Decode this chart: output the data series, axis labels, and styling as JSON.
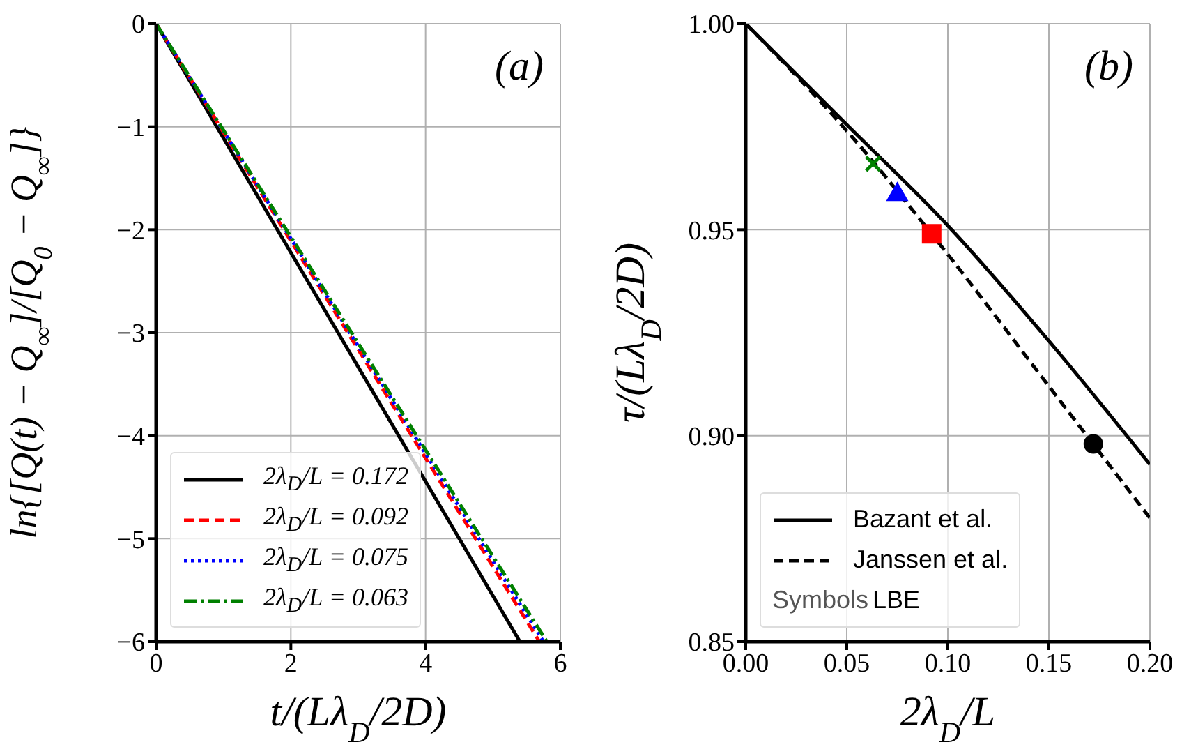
{
  "chart_data": [
    {
      "type": "line",
      "title": "(a)",
      "xlabel": "t/(Lλ$_{D}$/2D)",
      "ylabel": "ln{[Q(t) − Q$_{∞}$]/[Q$_{0}$ − Q$_{∞}$]}",
      "xlim": [
        0,
        6
      ],
      "xticks": [
        0,
        2,
        4,
        6
      ],
      "ylim": [
        -6,
        0
      ],
      "yticks": [
        {
          "value": -6,
          "label": "−6"
        },
        {
          "value": -5,
          "label": "−5"
        },
        {
          "value": -4,
          "label": "−4"
        },
        {
          "value": -3,
          "label": "−3"
        },
        {
          "value": -2,
          "label": "−2"
        },
        {
          "value": -1,
          "label": "−1"
        },
        0
      ],
      "grid": true,
      "legend": "bottom left",
      "series": [
        {
          "name": "2λ$_{D}$/L = 0.172",
          "color": "#000000",
          "line_style": "solid",
          "x": [
            0,
            5.4
          ],
          "values": [
            0,
            -6
          ]
        },
        {
          "name": "2λ$_{D}$/L = 0.092",
          "color": "#ff0000",
          "line_style": "dashed",
          "x": [
            0,
            5.69
          ],
          "values": [
            0,
            -6
          ]
        },
        {
          "name": "2λ$_{D}$/L = 0.075",
          "color": "#0000ff",
          "line_style": "dotted",
          "x": [
            0,
            5.75
          ],
          "values": [
            0,
            -6
          ]
        },
        {
          "name": "2λ$_{D}$/L = 0.063",
          "color": "#008000",
          "line_style": "dashdot",
          "x": [
            0,
            5.8
          ],
          "values": [
            0,
            -6
          ]
        }
      ]
    },
    {
      "type": "line",
      "title": "(b)",
      "xlabel": "2λ$_{D}$/L",
      "ylabel": "τ/(Lλ$_{D}$/2D)",
      "xlim": [
        0,
        0.2
      ],
      "xticks": [
        {
          "value": 0,
          "label": "0.00"
        },
        0.05,
        {
          "value": 0.1,
          "label": "0.10"
        },
        0.15,
        {
          "value": 0.2,
          "label": "0.20"
        }
      ],
      "ylim": [
        0.85,
        1
      ],
      "yticks": [
        0.85,
        {
          "value": 0.9,
          "label": "0.90"
        },
        0.95,
        {
          "value": 1,
          "label": "1.00"
        }
      ],
      "grid": true,
      "legend": "bottom left",
      "annotations": [
        "Symbols",
        "LBE"
      ],
      "series": [
        {
          "name": "Bazant et al.",
          "color": "#000000",
          "line_style": "solid",
          "x": [
            0,
            0.05,
            0.1,
            0.15,
            0.2
          ],
          "values": [
            1,
            0.9755,
            0.951,
            0.923,
            0.893
          ]
        },
        {
          "name": "Janssen et al.",
          "color": "#000000",
          "line_style": "dashed",
          "x": [
            0,
            0.05,
            0.1,
            0.15,
            0.2
          ],
          "values": [
            1,
            0.974,
            0.944,
            0.912,
            0.88
          ]
        },
        {
          "type": "scatter",
          "marker": "cross",
          "color": "#008000",
          "x": [
            0.063
          ],
          "values": [
            0.966
          ]
        },
        {
          "type": "scatter",
          "marker": "triangle",
          "color": "#0000ff",
          "x": [
            0.075
          ],
          "values": [
            0.959
          ]
        },
        {
          "type": "scatter",
          "marker": "square",
          "color": "#ff0000",
          "x": [
            0.092
          ],
          "values": [
            0.949
          ]
        },
        {
          "type": "scatter",
          "marker": "circle",
          "color": "#000000",
          "x": [
            0.172
          ],
          "values": [
            0.898
          ]
        }
      ]
    }
  ]
}
